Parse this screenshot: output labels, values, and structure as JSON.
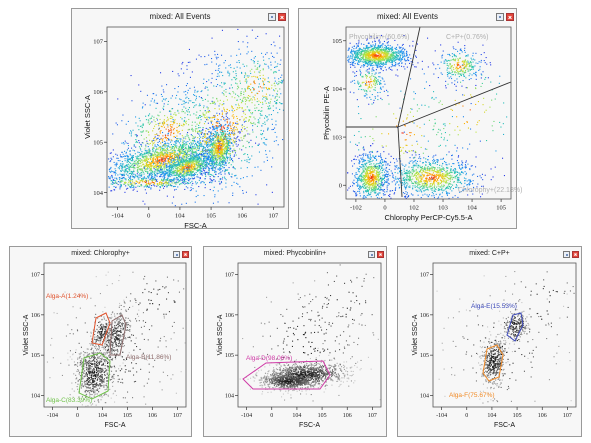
{
  "panels": [
    {
      "id": "p1",
      "title": "mixed: All Events",
      "xlabel": "FSC-A",
      "ylabel": "Violet SSC-A",
      "xticks": [
        "-10^4",
        "0",
        "10^4",
        "10^5",
        "10^6",
        "10^7"
      ],
      "yticks": [
        "10^4",
        "10^5",
        "10^6",
        "10^7"
      ],
      "gates": []
    },
    {
      "id": "p2",
      "title": "mixed: All Events",
      "xlabel": "Chlorophy PerCP-Cy5.5-A",
      "ylabel": "Phycobilin PE-A",
      "xticks": [
        "-10^2",
        "0",
        "10^2",
        "10^3",
        "10^4",
        "10^5"
      ],
      "yticks": [
        "0",
        "10^3",
        "10^4",
        "10^5"
      ],
      "gates": [
        {
          "label": "Phycobilin+(60.6%)",
          "color": "#b0b0b0"
        },
        {
          "label": "C+P+(0.76%)",
          "color": "#b0b0b0"
        },
        {
          "label": "Chlorophy+(22.18%)",
          "color": "#b0b0b0"
        }
      ]
    },
    {
      "id": "p3",
      "title": "mixed: Chlorophy+",
      "xlabel": "FSC-A",
      "ylabel": "Violet SSC-A",
      "xticks": [
        "-10^4",
        "0",
        "10^4",
        "10^5",
        "10^6",
        "10^7"
      ],
      "yticks": [
        "10^4",
        "10^5",
        "10^6",
        "10^7"
      ],
      "gates": [
        {
          "label": "Alga-A(1.24%)",
          "color": "#e0522c"
        },
        {
          "label": "Alga-B(11.86%)",
          "color": "#8c6b6b"
        },
        {
          "label": "Alga-C(83.39%)",
          "color": "#6fc24a"
        }
      ]
    },
    {
      "id": "p4",
      "title": "mixed: Phycobinlin+",
      "xlabel": "FSC-A",
      "ylabel": "Violet SSC-A",
      "xticks": [
        "-10^4",
        "0",
        "10^4",
        "10^5",
        "10^6",
        "10^7"
      ],
      "yticks": [
        "10^4",
        "10^5",
        "10^6",
        "10^7"
      ],
      "gates": [
        {
          "label": "Alga-D(98.06%)",
          "color": "#cf3aa6"
        }
      ]
    },
    {
      "id": "p5",
      "title": "mixed: C+P+",
      "xlabel": "FSC-A",
      "ylabel": "Violet SSC-A",
      "xticks": [
        "-10^4",
        "0",
        "10^4",
        "10^5",
        "10^6",
        "10^7"
      ],
      "yticks": [
        "10^4",
        "10^5",
        "10^6",
        "10^7"
      ],
      "gates": [
        {
          "label": "Alga-E(15.53%)",
          "color": "#3a47b8"
        },
        {
          "label": "Alga-F(75.67%)",
          "color": "#f08a26"
        }
      ]
    }
  ],
  "icons": {
    "options": "options-icon",
    "close": "close-icon"
  },
  "colors": {
    "panel_bg": "#f7f7f7",
    "frame": "#9a9a9a",
    "density_blue": "#1a3fd6",
    "density_hot": "#ff7a00"
  }
}
